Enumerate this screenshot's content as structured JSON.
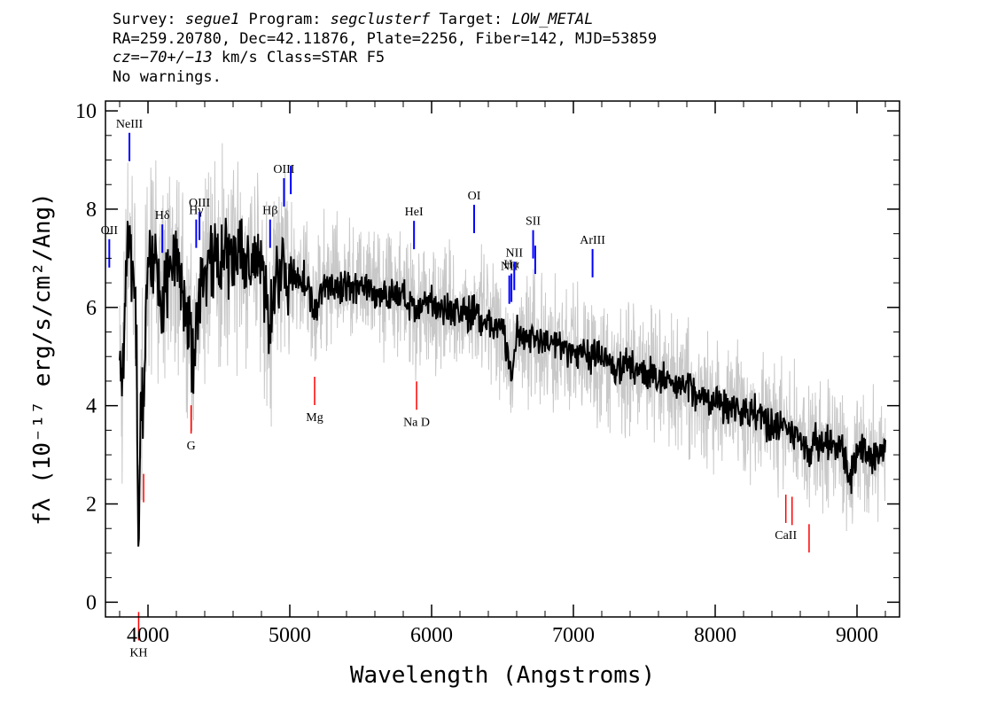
{
  "header": {
    "survey_label": "Survey: ",
    "survey": "segue1",
    "program_label": " Program: ",
    "program": "segclusterf",
    "target_label": " Target: ",
    "target": "LOW_METAL",
    "line2": "RA=259.20780, Dec=42.11876, Plate=2256, Fiber=142, MJD=53859",
    "cz_label": "cz",
    "cz_value": "=−70+/−13",
    "cz_rest": " km/s Class=STAR F5",
    "line4": "No warnings."
  },
  "chart_data": {
    "type": "line",
    "title": "",
    "xlabel": "Wavelength (Angstroms)",
    "ylabel": "fλ (10⁻¹⁷ erg/s/cm²/Ang)",
    "xlim": [
      3700,
      9300
    ],
    "ylim": [
      -0.3,
      10.2
    ],
    "x_ticks": [
      4000,
      5000,
      6000,
      7000,
      8000,
      9000
    ],
    "y_ticks": [
      0,
      2,
      4,
      6,
      8,
      10
    ],
    "grid": false,
    "colors": {
      "flux": "#000000",
      "error": "#c8c8c8",
      "emission": "#0000ff",
      "absorption": "#ff0000"
    },
    "series": [
      {
        "name": "flux",
        "x": [
          3800,
          3820,
          3840,
          3860,
          3880,
          3900,
          3920,
          3933,
          3950,
          3968,
          3990,
          4020,
          4060,
          4101,
          4150,
          4200,
          4250,
          4300,
          4320,
          4340,
          4360,
          4400,
          4500,
          4600,
          4700,
          4800,
          4861,
          4900,
          5000,
          5100,
          5175,
          5250,
          5400,
          5500,
          5600,
          5700,
          5800,
          5893,
          5950,
          6000,
          6100,
          6200,
          6300,
          6400,
          6500,
          6563,
          6600,
          6700,
          6800,
          6900,
          7000,
          7100,
          7200,
          7300,
          7400,
          7500,
          7600,
          7700,
          7800,
          7900,
          8000,
          8100,
          8200,
          8300,
          8400,
          8500,
          8600,
          8662,
          8700,
          8800,
          8900,
          8950,
          9000,
          9100,
          9200
        ],
        "y": [
          5.5,
          4.0,
          6.2,
          7.5,
          7.2,
          6.8,
          5.0,
          0.9,
          4.5,
          3.8,
          6.5,
          7.0,
          6.9,
          5.8,
          7.1,
          7.0,
          6.3,
          5.5,
          4.6,
          5.6,
          6.0,
          6.8,
          6.9,
          7.0,
          6.9,
          6.9,
          5.6,
          6.8,
          6.7,
          6.6,
          5.9,
          6.5,
          6.4,
          6.4,
          6.3,
          6.3,
          6.2,
          5.8,
          6.1,
          6.1,
          6.0,
          5.9,
          5.9,
          5.7,
          5.6,
          4.5,
          5.5,
          5.4,
          5.3,
          5.2,
          5.1,
          5.0,
          5.0,
          4.8,
          4.8,
          4.7,
          4.5,
          4.5,
          4.4,
          4.2,
          4.1,
          4.0,
          3.9,
          3.8,
          3.6,
          3.5,
          3.4,
          2.9,
          3.3,
          3.2,
          3.1,
          2.4,
          3.1,
          3.0,
          3.0
        ]
      }
    ],
    "emission_lines": [
      {
        "label": "OII",
        "x": 3727
      },
      {
        "label": "NeIII",
        "x": 3869
      },
      {
        "label": "Hδ",
        "x": 4101
      },
      {
        "label": "Hγ",
        "x": 4340
      },
      {
        "label": "OIII",
        "x": 4363
      },
      {
        "label": "Hβ",
        "x": 4861
      },
      {
        "label": "OIII",
        "x": 4959
      },
      {
        "label": "OIII",
        "x": 5007
      },
      {
        "label": "HeI",
        "x": 5876
      },
      {
        "label": "OI",
        "x": 6300
      },
      {
        "label": "NII",
        "x": 6548
      },
      {
        "label": "Hα",
        "x": 6563
      },
      {
        "label": "NII",
        "x": 6583
      },
      {
        "label": "SII",
        "x": 6716
      },
      {
        "label": "SII",
        "x": 6731
      },
      {
        "label": "ArIII",
        "x": 7135
      }
    ],
    "absorption_lines": [
      {
        "label": "KH",
        "x": 3934
      },
      {
        "label": "KH",
        "x": 3969
      },
      {
        "label": "G",
        "x": 4304
      },
      {
        "label": "Mg",
        "x": 5175
      },
      {
        "label": "Na D",
        "x": 5894
      },
      {
        "label": "CaII",
        "x": 8498
      },
      {
        "label": "CaII",
        "x": 8542
      },
      {
        "label": "CaII",
        "x": 8662
      }
    ]
  }
}
